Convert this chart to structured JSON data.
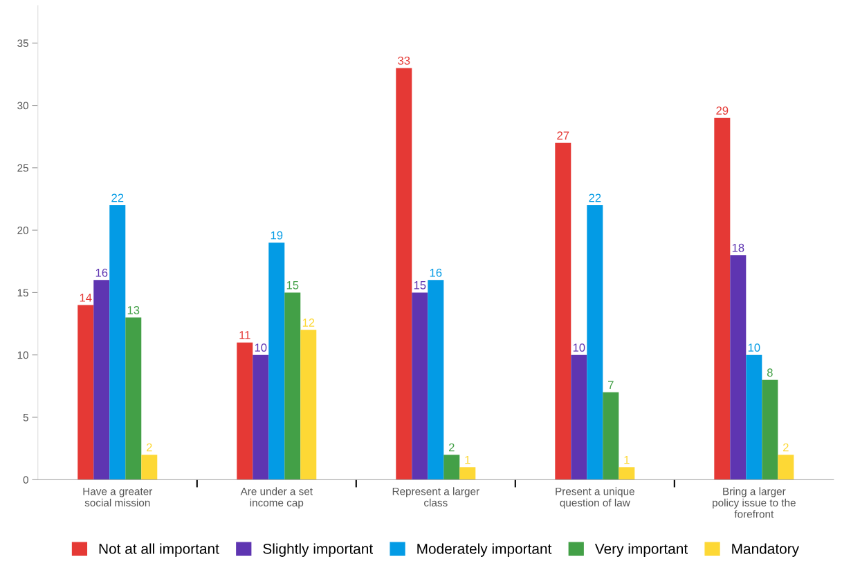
{
  "chart_data": {
    "type": "bar",
    "categories": [
      "Have a greater\nsocial mission",
      "Are under a set\nincome cap",
      "Represent a larger\nclass",
      "Present a unique\nquestion of law",
      "Bring a larger\npolicy issue to the\nforefront"
    ],
    "series": [
      {
        "name": "Not at all important",
        "color": "#e53935",
        "values": [
          14,
          11,
          33,
          27,
          29
        ]
      },
      {
        "name": "Slightly important",
        "color": "#5e35b1",
        "values": [
          16,
          10,
          15,
          10,
          18
        ]
      },
      {
        "name": "Moderately important",
        "color": "#039be5",
        "values": [
          22,
          19,
          16,
          22,
          10
        ]
      },
      {
        "name": "Very important",
        "color": "#43a047",
        "values": [
          13,
          15,
          2,
          7,
          8
        ]
      },
      {
        "name": "Mandatory",
        "color": "#fdd835",
        "values": [
          2,
          12,
          1,
          1,
          2
        ]
      }
    ],
    "ylim": [
      0,
      38
    ],
    "yticks": [
      0,
      5,
      10,
      15,
      20,
      25,
      30,
      35
    ],
    "data_labels": true,
    "grid": false,
    "legend": "bottom"
  }
}
